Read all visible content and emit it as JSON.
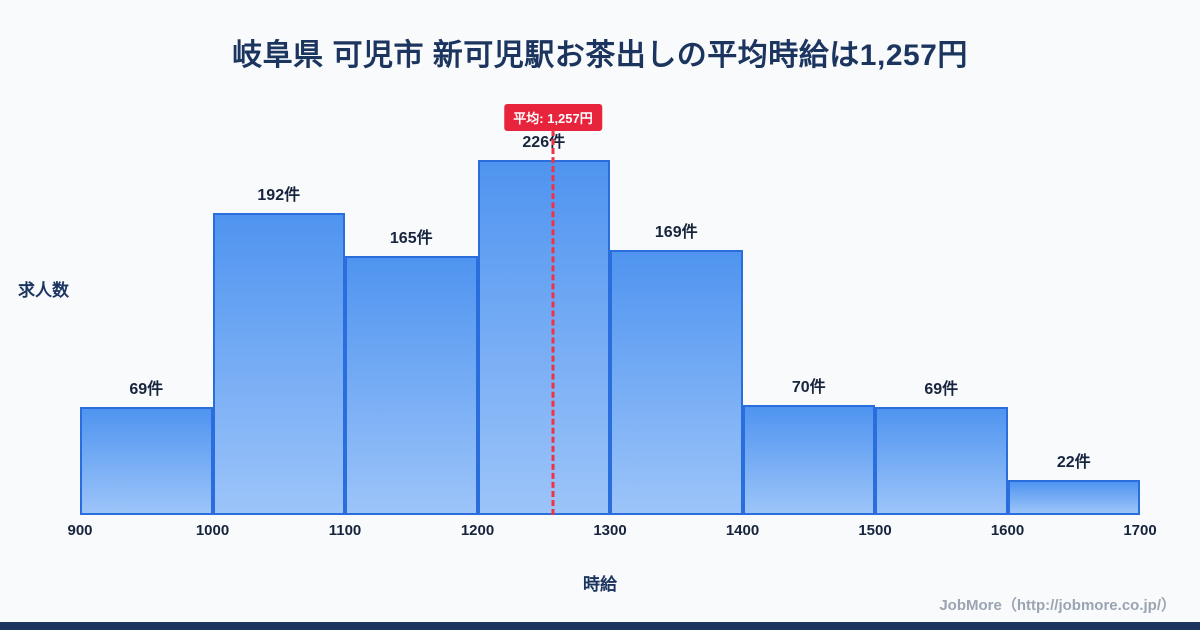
{
  "title": "岐阜県 可児市 新可児駅お茶出しの平均時給は1,257円",
  "chart_data": {
    "type": "bar",
    "histogram": true,
    "title": "岐阜県 可児市 新可児駅お茶出しの平均時給は1,257円",
    "categories": [
      "900-1000",
      "1000-1100",
      "1100-1200",
      "1200-1300",
      "1300-1400",
      "1400-1500",
      "1500-1600",
      "1600-1700"
    ],
    "values": [
      69,
      192,
      165,
      226,
      169,
      70,
      69,
      22
    ],
    "value_labels": [
      "69件",
      "192件",
      "165件",
      "226件",
      "169件",
      "70件",
      "69件",
      "22件"
    ],
    "x_ticks": [
      "900",
      "1000",
      "1100",
      "1200",
      "1300",
      "1400",
      "1500",
      "1600",
      "1700"
    ],
    "xlim": [
      900,
      1700
    ],
    "ylim": [
      0,
      226
    ],
    "xlabel": "時給",
    "ylabel": "求人数",
    "average": 1257,
    "average_label": "平均: 1,257円",
    "legend": "none",
    "grid": "off",
    "colors": {
      "bar_fill_top": "#4f94f0",
      "bar_fill_bottom": "#9cc4f9",
      "bar_border": "#2a6ddd",
      "average_line": "#ee3347",
      "average_badge_bg": "#e8243c",
      "average_badge_text": "#ffffff",
      "title_text": "#1c355f",
      "axis_text": "#17243d",
      "background": "#f8fafc",
      "bottom_bar": "#1d3461"
    }
  },
  "footer": {
    "credit": "JobMore（http://jobmore.co.jp/）"
  }
}
